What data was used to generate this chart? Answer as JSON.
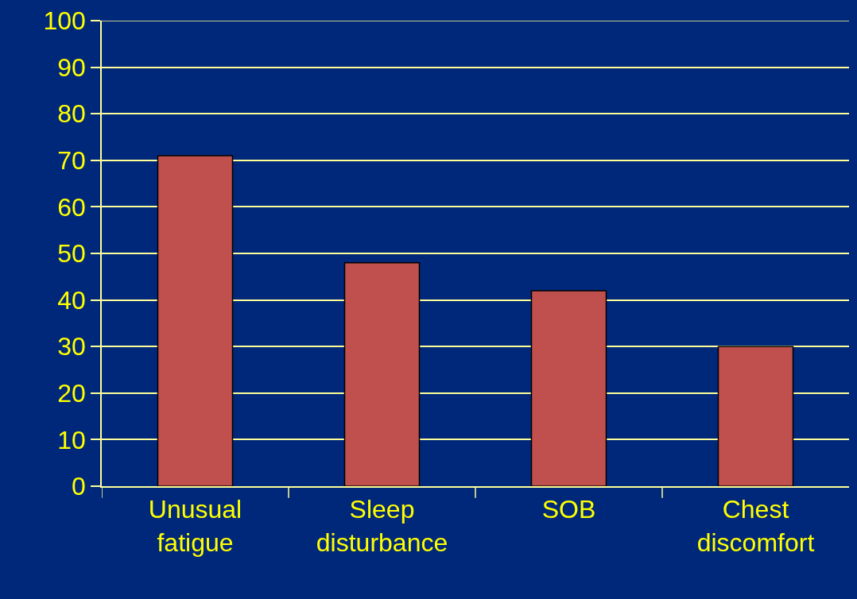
{
  "chart_data": {
    "type": "bar",
    "categories": [
      "Unusual fatigue",
      "Sleep disturbance",
      "SOB",
      "Chest discomfort"
    ],
    "values": [
      71,
      48,
      42,
      30
    ],
    "color": "#c0504d",
    "ylim": [
      0,
      100
    ],
    "yticks": [
      0,
      10,
      20,
      30,
      40,
      50,
      60,
      70,
      80,
      90,
      100
    ],
    "grid": "y"
  }
}
